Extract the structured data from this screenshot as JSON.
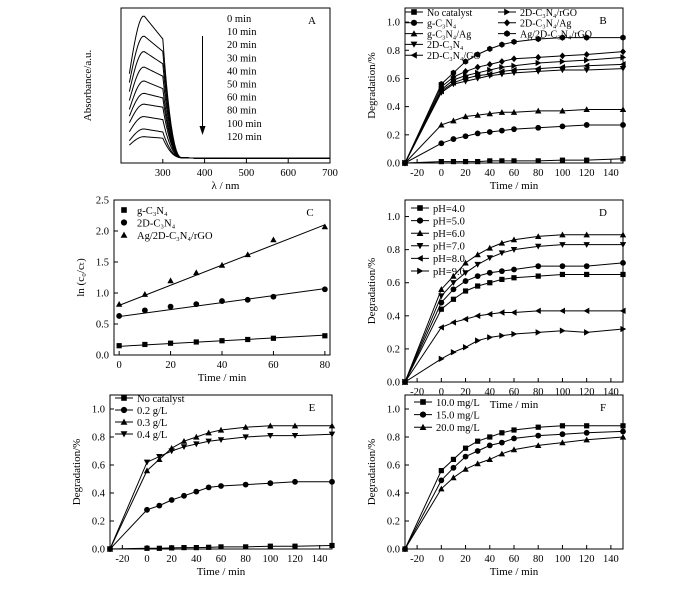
{
  "figure": {
    "background": "#ffffff",
    "ink": "#000000"
  },
  "chart_data": [
    {
      "id": "A",
      "type": "line",
      "panel_label": "A",
      "xlabel": "λ / nm",
      "ylabel": "Absorbance/a.u.",
      "xlim": [
        200,
        700
      ],
      "ylim": [
        0,
        1
      ],
      "xticks": [
        300,
        400,
        500,
        600,
        700
      ],
      "yticks": [],
      "grid": false,
      "legend": {
        "placement": "top-right",
        "entries": [
          "0 min",
          "10 min",
          "20 min",
          "30 min",
          "40 min",
          "50 min",
          "60 min",
          "80 min",
          "100 min",
          "120 min"
        ]
      },
      "arrow": {
        "x": 395,
        "y_from": 0.9,
        "y_to": 0.1
      },
      "series": [
        {
          "name": "0 min",
          "values": {
            "peak": 0.95,
            "shoulder": 0.8,
            "tail": 0.034,
            "base": 0.03
          }
        },
        {
          "name": "10 min",
          "values": {
            "peak": 0.82,
            "shoulder": 0.72,
            "tail": 0.034,
            "base": 0.03
          }
        },
        {
          "name": "20 min",
          "values": {
            "peak": 0.72,
            "shoulder": 0.64,
            "tail": 0.034,
            "base": 0.03
          }
        },
        {
          "name": "30 min",
          "values": {
            "peak": 0.62,
            "shoulder": 0.56,
            "tail": 0.034,
            "base": 0.03
          }
        },
        {
          "name": "40 min",
          "values": {
            "peak": 0.53,
            "shoulder": 0.48,
            "tail": 0.034,
            "base": 0.03
          }
        },
        {
          "name": "50 min",
          "values": {
            "peak": 0.45,
            "shoulder": 0.42,
            "tail": 0.034,
            "base": 0.03
          }
        },
        {
          "name": "60 min",
          "values": {
            "peak": 0.38,
            "shoulder": 0.36,
            "tail": 0.034,
            "base": 0.03
          }
        },
        {
          "name": "80 min",
          "values": {
            "peak": 0.3,
            "shoulder": 0.28,
            "tail": 0.034,
            "base": 0.03
          }
        },
        {
          "name": "100 min",
          "values": {
            "peak": 0.22,
            "shoulder": 0.2,
            "tail": 0.034,
            "base": 0.03
          }
        },
        {
          "name": "120 min",
          "values": {
            "peak": 0.17,
            "shoulder": 0.16,
            "tail": 0.034,
            "base": 0.03
          }
        }
      ]
    },
    {
      "id": "B",
      "type": "line",
      "panel_label": "B",
      "xlabel": "Time / min",
      "ylabel": "Degradation/%",
      "xlim": [
        -30,
        150
      ],
      "ylim": [
        0,
        1.1
      ],
      "xticks": [
        -20,
        0,
        20,
        40,
        60,
        80,
        100,
        120,
        140
      ],
      "yticks": [
        0.0,
        0.2,
        0.4,
        0.6,
        0.8,
        1.0
      ],
      "grid": false,
      "legend": {
        "placement": "top"
      },
      "x": [
        -30,
        0,
        10,
        20,
        30,
        40,
        50,
        60,
        80,
        100,
        120,
        150
      ],
      "series": [
        {
          "name": "No catalyst",
          "marker": "square",
          "values": [
            0,
            0.01,
            0.01,
            0.01,
            0.01,
            0.015,
            0.015,
            0.015,
            0.015,
            0.02,
            0.02,
            0.03
          ]
        },
        {
          "name": "g-C₃N₄",
          "marker": "circle",
          "values": [
            0,
            0.14,
            0.17,
            0.19,
            0.21,
            0.22,
            0.23,
            0.24,
            0.25,
            0.26,
            0.27,
            0.27
          ]
        },
        {
          "name": "g-C₃N₄/Ag",
          "marker": "triangle-up",
          "values": [
            0,
            0.27,
            0.3,
            0.33,
            0.34,
            0.35,
            0.36,
            0.36,
            0.37,
            0.37,
            0.38,
            0.38
          ]
        },
        {
          "name": "2D-C₃N₄",
          "marker": "triangle-down",
          "values": [
            0,
            0.5,
            0.56,
            0.58,
            0.6,
            0.62,
            0.63,
            0.64,
            0.65,
            0.66,
            0.66,
            0.67
          ]
        },
        {
          "name": "2D-C₃N₄/GO",
          "marker": "triangle-left",
          "values": [
            0,
            0.51,
            0.57,
            0.6,
            0.62,
            0.63,
            0.65,
            0.66,
            0.67,
            0.68,
            0.69,
            0.7
          ]
        },
        {
          "name": "2D-C₃N₄/rGO",
          "marker": "triangle-right",
          "values": [
            0,
            0.52,
            0.59,
            0.62,
            0.64,
            0.66,
            0.68,
            0.69,
            0.71,
            0.72,
            0.73,
            0.75
          ]
        },
        {
          "name": "2D-C₃N₄/Ag",
          "marker": "diamond",
          "values": [
            0,
            0.54,
            0.61,
            0.65,
            0.68,
            0.7,
            0.72,
            0.74,
            0.75,
            0.76,
            0.77,
            0.79
          ]
        },
        {
          "name": "Ag/2D-C₃N₄/rGO",
          "marker": "hexagon",
          "values": [
            0,
            0.56,
            0.64,
            0.72,
            0.77,
            0.81,
            0.84,
            0.86,
            0.88,
            0.89,
            0.89,
            0.89
          ]
        }
      ]
    },
    {
      "id": "C",
      "type": "scatter",
      "panel_label": "C",
      "xlabel": "Time / min",
      "ylabel": "ln (c₀/cₜ)",
      "xlim": [
        -2,
        82
      ],
      "ylim": [
        0,
        2.5
      ],
      "xticks": [
        0,
        20,
        40,
        60,
        80
      ],
      "yticks": [
        0.0,
        0.5,
        1.0,
        1.5,
        2.0,
        2.5
      ],
      "grid": false,
      "legend": {
        "placement": "top-left"
      },
      "x": [
        0,
        10,
        20,
        30,
        40,
        50,
        60,
        80
      ],
      "series": [
        {
          "name": "g-C₃N₄",
          "marker": "square",
          "values": [
            0.15,
            0.17,
            0.19,
            0.21,
            0.23,
            0.25,
            0.27,
            0.31
          ],
          "fit": [
            0.14,
            0.32
          ]
        },
        {
          "name": "2D-C₃N₄",
          "marker": "circle",
          "values": [
            0.63,
            0.72,
            0.78,
            0.82,
            0.87,
            0.89,
            0.94,
            1.06
          ],
          "fit": [
            0.62,
            1.07
          ]
        },
        {
          "name": "Ag/2D-C₃N₄/rGO",
          "marker": "triangle-up",
          "values": [
            0.82,
            0.98,
            1.2,
            1.33,
            1.45,
            1.62,
            1.86,
            2.07
          ],
          "fit": [
            0.8,
            2.1
          ]
        }
      ]
    },
    {
      "id": "D",
      "type": "line",
      "panel_label": "D",
      "xlabel": "Time / min",
      "ylabel": "Degradation/%",
      "xlim": [
        -30,
        150
      ],
      "ylim": [
        0,
        1.1
      ],
      "xticks": [
        -20,
        0,
        20,
        40,
        60,
        80,
        100,
        120,
        140
      ],
      "yticks": [
        0.0,
        0.2,
        0.4,
        0.6,
        0.8,
        1.0
      ],
      "grid": false,
      "legend": {
        "placement": "top-left"
      },
      "x": [
        -30,
        0,
        10,
        20,
        30,
        40,
        50,
        60,
        80,
        100,
        120,
        150
      ],
      "series": [
        {
          "name": "pH=4.0",
          "marker": "square",
          "values": [
            0,
            0.44,
            0.5,
            0.55,
            0.58,
            0.6,
            0.62,
            0.63,
            0.64,
            0.65,
            0.65,
            0.65
          ]
        },
        {
          "name": "pH=5.0",
          "marker": "circle",
          "values": [
            0,
            0.48,
            0.56,
            0.61,
            0.64,
            0.66,
            0.67,
            0.68,
            0.7,
            0.7,
            0.7,
            0.72
          ]
        },
        {
          "name": "pH=6.0",
          "marker": "triangle-up",
          "values": [
            0,
            0.56,
            0.64,
            0.72,
            0.77,
            0.81,
            0.84,
            0.86,
            0.88,
            0.89,
            0.89,
            0.89
          ]
        },
        {
          "name": "pH=7.0",
          "marker": "triangle-down",
          "values": [
            0,
            0.52,
            0.6,
            0.66,
            0.71,
            0.75,
            0.78,
            0.8,
            0.82,
            0.83,
            0.83,
            0.83
          ]
        },
        {
          "name": "pH=8.0",
          "marker": "triangle-left",
          "values": [
            0,
            0.33,
            0.36,
            0.38,
            0.4,
            0.41,
            0.42,
            0.42,
            0.43,
            0.43,
            0.43,
            0.43
          ]
        },
        {
          "name": "pH=9.0",
          "marker": "triangle-right",
          "values": [
            0,
            0.14,
            0.18,
            0.21,
            0.25,
            0.27,
            0.28,
            0.29,
            0.3,
            0.31,
            0.3,
            0.32
          ]
        }
      ]
    },
    {
      "id": "E",
      "type": "line",
      "panel_label": "E",
      "xlabel": "Time / min",
      "ylabel": "Degradation/%",
      "xlim": [
        -30,
        150
      ],
      "ylim": [
        0,
        1.1
      ],
      "xticks": [
        -20,
        0,
        20,
        40,
        60,
        80,
        100,
        120,
        140
      ],
      "yticks": [
        0.0,
        0.2,
        0.4,
        0.6,
        0.8,
        1.0
      ],
      "grid": false,
      "legend": {
        "placement": "top-left"
      },
      "x": [
        -30,
        0,
        10,
        20,
        30,
        40,
        50,
        60,
        80,
        100,
        120,
        150
      ],
      "series": [
        {
          "name": "No catalyst",
          "marker": "square",
          "values": [
            0,
            0.005,
            0.005,
            0.008,
            0.01,
            0.01,
            0.012,
            0.015,
            0.015,
            0.02,
            0.02,
            0.025
          ]
        },
        {
          "name": "0.2 g/L",
          "marker": "circle",
          "values": [
            0,
            0.28,
            0.31,
            0.35,
            0.38,
            0.41,
            0.44,
            0.45,
            0.46,
            0.47,
            0.48,
            0.48
          ]
        },
        {
          "name": "0.3 g/L",
          "marker": "triangle-up",
          "values": [
            0,
            0.56,
            0.64,
            0.72,
            0.77,
            0.8,
            0.83,
            0.85,
            0.87,
            0.88,
            0.88,
            0.88
          ]
        },
        {
          "name": "0.4 g/L",
          "marker": "triangle-down",
          "values": [
            0,
            0.62,
            0.66,
            0.7,
            0.73,
            0.75,
            0.77,
            0.78,
            0.8,
            0.81,
            0.81,
            0.82
          ]
        }
      ]
    },
    {
      "id": "F",
      "type": "line",
      "panel_label": "F",
      "xlabel": "Time / min",
      "ylabel": "Degradation/%",
      "xlim": [
        -30,
        150
      ],
      "ylim": [
        0,
        1.1
      ],
      "xticks": [
        -20,
        0,
        20,
        40,
        60,
        80,
        100,
        120,
        140
      ],
      "yticks": [
        0.0,
        0.2,
        0.4,
        0.6,
        0.8,
        1.0
      ],
      "grid": false,
      "legend": {
        "placement": "top-left"
      },
      "x": [
        -30,
        0,
        10,
        20,
        30,
        40,
        50,
        60,
        80,
        100,
        120,
        150
      ],
      "series": [
        {
          "name": "10.0 mg/L",
          "marker": "square",
          "values": [
            0,
            0.56,
            0.64,
            0.72,
            0.77,
            0.8,
            0.83,
            0.85,
            0.87,
            0.88,
            0.88,
            0.88
          ]
        },
        {
          "name": "15.0 mg/L",
          "marker": "circle",
          "values": [
            0,
            0.49,
            0.58,
            0.66,
            0.7,
            0.74,
            0.76,
            0.79,
            0.81,
            0.82,
            0.83,
            0.84
          ]
        },
        {
          "name": "20.0 mg/L",
          "marker": "triangle-up",
          "values": [
            0,
            0.43,
            0.51,
            0.57,
            0.61,
            0.64,
            0.68,
            0.71,
            0.74,
            0.76,
            0.78,
            0.8
          ]
        }
      ]
    }
  ]
}
